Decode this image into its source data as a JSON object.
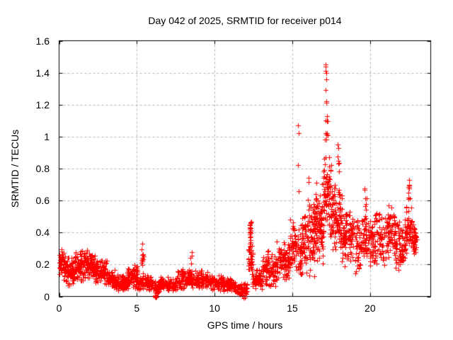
{
  "chart_data": {
    "type": "scatter",
    "title": "Day 042 of 2025, SRMTID for receiver p014",
    "xlabel": "GPS time / hours",
    "ylabel": "SRMTID / TECUs",
    "xlim": [
      0,
      23.9
    ],
    "ylim": [
      0,
      1.6
    ],
    "x_ticks": {
      "values": [
        0,
        5,
        10,
        15,
        20
      ],
      "labels": [
        "0",
        "5",
        "10",
        "15",
        "20"
      ]
    },
    "y_ticks": {
      "values": [
        0,
        0.2,
        0.4,
        0.6,
        0.8,
        1.0,
        1.2,
        1.4,
        1.6
      ],
      "labels": [
        "0",
        "0.2",
        "0.4",
        "0.6",
        "0.8",
        "1",
        "1.2",
        "1.4",
        "1.6"
      ]
    },
    "grid": "dashed",
    "legend": "none",
    "series_name": "SRMTID",
    "marker": {
      "shape": "plus",
      "size": 7
    },
    "colors": {
      "marker": "#ff0000",
      "grid": "#b0b0b0",
      "frame": "#000000",
      "background": "#ffffff",
      "text": "#000000"
    },
    "max_value": 1.45,
    "max_value_time": 17.15,
    "scatter_spec": {
      "seed": 20250211,
      "bands_format": [
        "t_start",
        "t_end",
        "y_min",
        "y_max",
        "n_points"
      ],
      "bands": [
        [
          0.0,
          0.3,
          0.1,
          0.32,
          40
        ],
        [
          0.3,
          1.0,
          0.06,
          0.26,
          90
        ],
        [
          1.0,
          1.6,
          0.07,
          0.3,
          80
        ],
        [
          1.6,
          2.3,
          0.09,
          0.31,
          90
        ],
        [
          2.3,
          3.1,
          0.07,
          0.24,
          90
        ],
        [
          3.1,
          3.7,
          0.04,
          0.17,
          70
        ],
        [
          3.7,
          4.4,
          0.03,
          0.14,
          80
        ],
        [
          4.4,
          5.1,
          0.04,
          0.2,
          80
        ],
        [
          5.1,
          6.1,
          0.03,
          0.14,
          90
        ],
        [
          6.1,
          6.4,
          0.01,
          0.1,
          35
        ],
        [
          6.4,
          7.6,
          0.03,
          0.13,
          110
        ],
        [
          7.6,
          8.6,
          0.04,
          0.18,
          100
        ],
        [
          8.6,
          9.6,
          0.04,
          0.17,
          100
        ],
        [
          9.6,
          10.6,
          0.03,
          0.14,
          100
        ],
        [
          10.6,
          11.3,
          0.03,
          0.12,
          75
        ],
        [
          11.3,
          12.1,
          0.0,
          0.09,
          70
        ],
        [
          12.15,
          12.45,
          0.12,
          0.33,
          40
        ],
        [
          12.45,
          13.1,
          0.04,
          0.18,
          70
        ],
        [
          13.1,
          14.0,
          0.05,
          0.28,
          90
        ],
        [
          14.0,
          14.8,
          0.08,
          0.36,
          90
        ],
        [
          14.8,
          15.6,
          0.1,
          0.5,
          95
        ],
        [
          15.6,
          16.4,
          0.1,
          0.62,
          100
        ],
        [
          16.4,
          17.0,
          0.15,
          0.75,
          110
        ],
        [
          17.0,
          17.5,
          0.35,
          0.92,
          80
        ],
        [
          17.5,
          18.2,
          0.25,
          0.75,
          100
        ],
        [
          18.2,
          19.0,
          0.18,
          0.55,
          90
        ],
        [
          19.0,
          19.9,
          0.12,
          0.52,
          90
        ],
        [
          19.9,
          21.0,
          0.18,
          0.55,
          110
        ],
        [
          21.0,
          21.6,
          0.22,
          0.58,
          70
        ],
        [
          21.6,
          22.3,
          0.15,
          0.5,
          80
        ],
        [
          22.3,
          22.7,
          0.25,
          0.6,
          50
        ],
        [
          22.7,
          23.0,
          0.25,
          0.46,
          40
        ]
      ],
      "columns_format": [
        "t_center",
        "y_min",
        "y_max",
        "n_points",
        "t_jitter"
      ],
      "columns": [
        [
          5.35,
          0.12,
          0.35,
          16,
          0.08
        ],
        [
          6.2,
          -0.005,
          0.02,
          10,
          0.04
        ],
        [
          8.5,
          0.1,
          0.28,
          10,
          0.05
        ],
        [
          12.3,
          0.3,
          0.475,
          20,
          0.05
        ],
        [
          13.45,
          0.15,
          0.3,
          8,
          0.08
        ],
        [
          16.05,
          0.45,
          0.76,
          6,
          0.05
        ],
        [
          17.18,
          0.92,
          1.1,
          10,
          0.1
        ],
        [
          17.95,
          0.78,
          1.0,
          7,
          0.05
        ],
        [
          19.7,
          0.45,
          0.68,
          10,
          0.06
        ],
        [
          22.5,
          0.58,
          0.735,
          9,
          0.06
        ]
      ],
      "outliers": [
        [
          17.13,
          1.45
        ],
        [
          17.16,
          1.44
        ],
        [
          17.15,
          1.41
        ],
        [
          17.19,
          1.4
        ],
        [
          17.17,
          1.36
        ],
        [
          17.14,
          1.29
        ],
        [
          17.2,
          1.22
        ],
        [
          17.18,
          1.21
        ],
        [
          17.21,
          1.13
        ],
        [
          17.12,
          1.1
        ],
        [
          15.37,
          1.07
        ],
        [
          15.4,
          1.02
        ],
        [
          15.35,
          0.82
        ],
        [
          15.42,
          0.66
        ],
        [
          22.5,
          0.7
        ],
        [
          22.53,
          0.73
        ],
        [
          6.22,
          -0.005
        ],
        [
          11.88,
          -0.01
        ],
        [
          11.93,
          -0.005
        ]
      ]
    }
  }
}
